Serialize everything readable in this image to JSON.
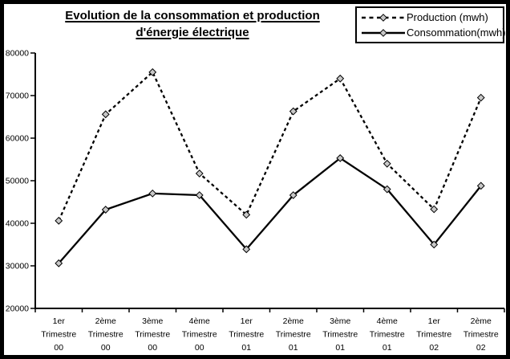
{
  "frame": {
    "background": "#ffffff",
    "border_color": "#000000"
  },
  "chart_data": {
    "type": "line",
    "title": "Evolution de la consommation et production d'énergie électrique",
    "title_lines": [
      "Evolution de la consommation et production ",
      "d'énergie électrique"
    ],
    "categories": [
      "1er Trimestre 00",
      "2ème Trimestre 00",
      "3ème Trimestre 00",
      "4ème Trimestre 00",
      "1er Trimestre 01",
      "2ème Trimestre 01",
      "3ème Trimestre 01",
      "4ème Trimestre 01",
      "1er Trimestre 02",
      "2ème Trimestre 02"
    ],
    "series": [
      {
        "name": "Production (mwh)",
        "line_style": "dashed",
        "marker": "diamond",
        "line_color": "#000000",
        "marker_fill": "#c8c8c8",
        "values": [
          40600,
          65600,
          75500,
          51700,
          42000,
          66300,
          74000,
          54000,
          43300,
          69500
        ]
      },
      {
        "name": "Consommation(mwh)",
        "line_style": "solid",
        "marker": "diamond",
        "line_color": "#000000",
        "marker_fill": "#c8c8c8",
        "values": [
          30600,
          43200,
          47000,
          46600,
          33900,
          46600,
          55300,
          48000,
          35000,
          48800
        ]
      }
    ],
    "xlabel": "",
    "ylabel": "",
    "ylim": [
      20000,
      80000
    ],
    "y_tick_step": 10000,
    "grid": false,
    "legend_position": "top-right"
  }
}
